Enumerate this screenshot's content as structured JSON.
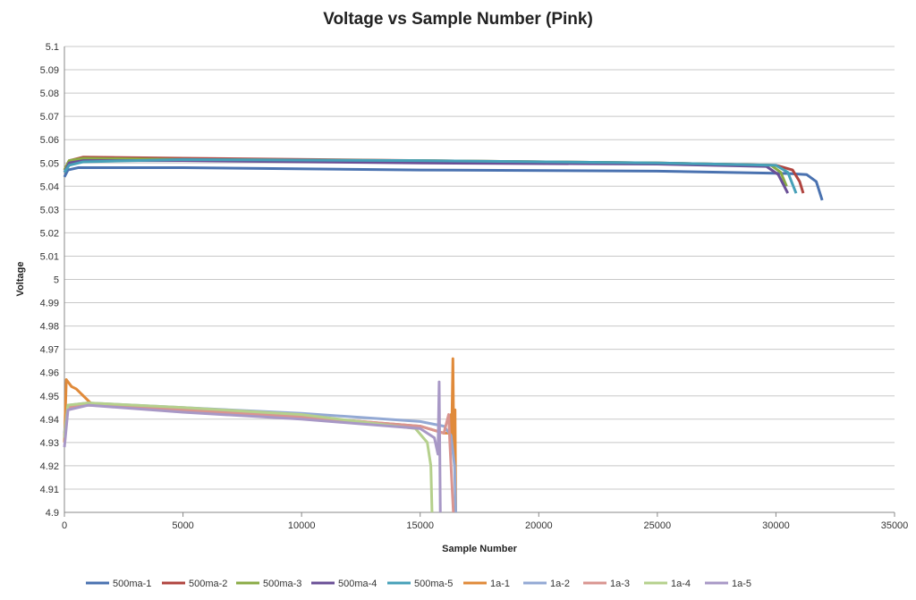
{
  "chart_data": {
    "type": "line",
    "title": "Voltage vs Sample Number (Pink)",
    "xlabel": "Sample Number",
    "ylabel": "Voltage",
    "xlim": [
      0,
      35000
    ],
    "ylim": [
      4.9,
      5.1
    ],
    "xticks": [
      0,
      5000,
      10000,
      15000,
      20000,
      25000,
      30000,
      35000
    ],
    "yticks": [
      4.9,
      4.91,
      4.92,
      4.93,
      4.94,
      4.95,
      4.96,
      4.97,
      4.98,
      4.99,
      5,
      5.01,
      5.02,
      5.03,
      5.04,
      5.05,
      5.06,
      5.07,
      5.08,
      5.09,
      5.1
    ],
    "grid": true,
    "legend": "bottom",
    "series": [
      {
        "name": "500ma-1",
        "color": "#4a72b0",
        "points": [
          [
            0,
            5.044
          ],
          [
            150,
            5.047
          ],
          [
            600,
            5.048
          ],
          [
            5000,
            5.048
          ],
          [
            15000,
            5.047
          ],
          [
            25000,
            5.0465
          ],
          [
            30500,
            5.0455
          ],
          [
            31300,
            5.045
          ],
          [
            31700,
            5.042
          ],
          [
            31950,
            5.034
          ]
        ]
      },
      {
        "name": "500ma-2",
        "color": "#b0443f",
        "points": [
          [
            0,
            5.047
          ],
          [
            200,
            5.051
          ],
          [
            800,
            5.0525
          ],
          [
            5000,
            5.052
          ],
          [
            15000,
            5.051
          ],
          [
            25000,
            5.05
          ],
          [
            30000,
            5.049
          ],
          [
            30700,
            5.047
          ],
          [
            31000,
            5.042
          ],
          [
            31150,
            5.037
          ]
        ]
      },
      {
        "name": "500ma-3",
        "color": "#8aab45",
        "points": [
          [
            0,
            5.047
          ],
          [
            200,
            5.051
          ],
          [
            800,
            5.052
          ],
          [
            5000,
            5.0515
          ],
          [
            15000,
            5.051
          ],
          [
            25000,
            5.05
          ],
          [
            29800,
            5.049
          ],
          [
            30200,
            5.046
          ],
          [
            30450,
            5.04
          ]
        ]
      },
      {
        "name": "500ma-4",
        "color": "#6a4f96",
        "points": [
          [
            0,
            5.046
          ],
          [
            200,
            5.05
          ],
          [
            800,
            5.051
          ],
          [
            5000,
            5.051
          ],
          [
            15000,
            5.05
          ],
          [
            25000,
            5.0495
          ],
          [
            29600,
            5.0485
          ],
          [
            30100,
            5.045
          ],
          [
            30500,
            5.037
          ]
        ]
      },
      {
        "name": "500ma-5",
        "color": "#46a0b8",
        "points": [
          [
            0,
            5.046
          ],
          [
            200,
            5.049
          ],
          [
            800,
            5.0505
          ],
          [
            5000,
            5.0515
          ],
          [
            15000,
            5.051
          ],
          [
            25000,
            5.05
          ],
          [
            30000,
            5.049
          ],
          [
            30500,
            5.046
          ],
          [
            30850,
            5.037
          ]
        ]
      },
      {
        "name": "1a-1",
        "color": "#e08a3a",
        "points": [
          [
            0,
            4.93
          ],
          [
            80,
            4.957
          ],
          [
            300,
            4.954
          ],
          [
            500,
            4.953
          ],
          [
            700,
            4.951
          ],
          [
            800,
            4.95
          ],
          [
            1200,
            4.946
          ],
          [
            5000,
            4.944
          ],
          [
            10000,
            4.941
          ],
          [
            15000,
            4.937
          ],
          [
            16000,
            4.934
          ],
          [
            16250,
            4.934
          ],
          [
            16300,
            4.942
          ],
          [
            16330,
            4.933
          ],
          [
            16380,
            4.966
          ],
          [
            16420,
            4.925
          ],
          [
            16470,
            4.944
          ],
          [
            16500,
            4.9
          ]
        ]
      },
      {
        "name": "1a-2",
        "color": "#93a9d4",
        "points": [
          [
            0,
            4.934
          ],
          [
            150,
            4.946
          ],
          [
            1000,
            4.947
          ],
          [
            5000,
            4.945
          ],
          [
            10000,
            4.9425
          ],
          [
            15000,
            4.939
          ],
          [
            16000,
            4.937
          ],
          [
            16300,
            4.933
          ],
          [
            16450,
            4.92
          ],
          [
            16500,
            4.9
          ]
        ]
      },
      {
        "name": "1a-3",
        "color": "#d99590",
        "points": [
          [
            0,
            4.933
          ],
          [
            150,
            4.945
          ],
          [
            1000,
            4.946
          ],
          [
            5000,
            4.944
          ],
          [
            10000,
            4.941
          ],
          [
            15000,
            4.937
          ],
          [
            16000,
            4.934
          ],
          [
            16200,
            4.942
          ],
          [
            16250,
            4.93
          ],
          [
            16400,
            4.9
          ]
        ]
      },
      {
        "name": "1a-4",
        "color": "#b5d08c",
        "points": [
          [
            0,
            4.932
          ],
          [
            150,
            4.946
          ],
          [
            1000,
            4.947
          ],
          [
            5000,
            4.945
          ],
          [
            10000,
            4.942
          ],
          [
            14800,
            4.936
          ],
          [
            15300,
            4.93
          ],
          [
            15450,
            4.92
          ],
          [
            15500,
            4.9
          ]
        ]
      },
      {
        "name": "1a-5",
        "color": "#a898c6",
        "points": [
          [
            0,
            4.928
          ],
          [
            150,
            4.944
          ],
          [
            1000,
            4.946
          ],
          [
            5000,
            4.943
          ],
          [
            10000,
            4.94
          ],
          [
            15000,
            4.936
          ],
          [
            15600,
            4.932
          ],
          [
            15750,
            4.925
          ],
          [
            15800,
            4.956
          ],
          [
            15850,
            4.9
          ]
        ]
      }
    ]
  }
}
